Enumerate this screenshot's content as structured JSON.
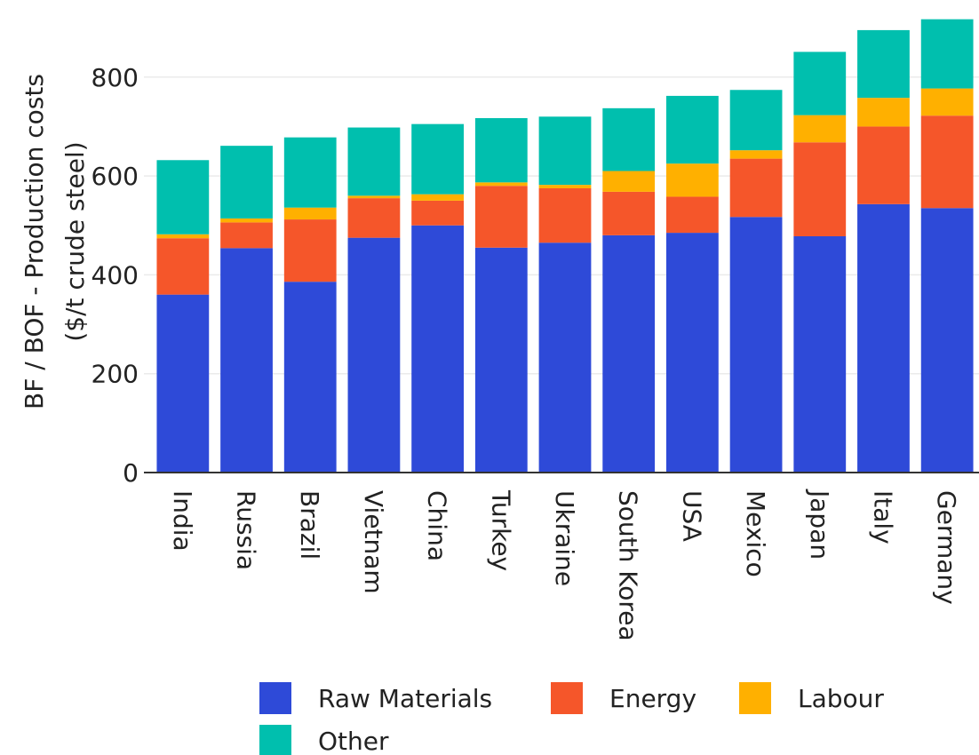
{
  "chart_data": {
    "type": "bar",
    "stacked": true,
    "ylabel_line1": "BF / BOF - Production costs",
    "ylabel_line2": "($/t crude steel)",
    "ylim": [
      0,
      920
    ],
    "yticks": [
      0,
      200,
      400,
      600,
      800
    ],
    "grid": true,
    "legend_position": "bottom",
    "categories": [
      "India",
      "Russia",
      "Brazil",
      "Vietnam",
      "China",
      "Turkey",
      "Ukraine",
      "South Korea",
      "USA",
      "Mexico",
      "Japan",
      "Italy",
      "Germany"
    ],
    "series": [
      {
        "name": "Raw Materials",
        "color": "#2e4ad8",
        "values": [
          360,
          454,
          386,
          475,
          500,
          455,
          465,
          480,
          485,
          517,
          478,
          543,
          535
        ]
      },
      {
        "name": "Energy",
        "color": "#f5562a",
        "values": [
          114,
          52,
          126,
          80,
          50,
          125,
          110,
          88,
          73,
          118,
          190,
          157,
          187
        ]
      },
      {
        "name": "Labour",
        "color": "#ffb000",
        "values": [
          8,
          8,
          24,
          5,
          13,
          7,
          7,
          42,
          67,
          17,
          55,
          58,
          55
        ]
      },
      {
        "name": "Other",
        "color": "#00bfae",
        "values": [
          150,
          147,
          142,
          138,
          142,
          130,
          138,
          127,
          137,
          122,
          128,
          137,
          140
        ]
      }
    ]
  }
}
